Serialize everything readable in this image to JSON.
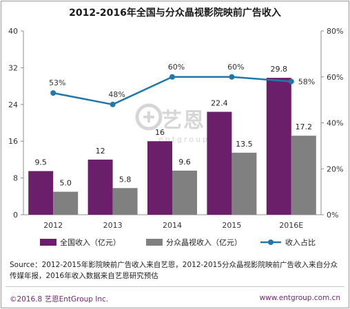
{
  "title": "2012-2016年全国与分众晶视影院映前广告收入",
  "watermark": {
    "text": "艺恩",
    "sub": "entgroup"
  },
  "colors": {
    "bar1": "#6b1f6b",
    "bar2": "#808080",
    "line": "#1f78a8",
    "footer": "#6e2870"
  },
  "chart_data": {
    "type": "bar",
    "categories": [
      "2012",
      "2013",
      "2014",
      "2015",
      "2016E"
    ],
    "series": [
      {
        "name": "全国收入（亿元）",
        "type": "bar",
        "axis": "left",
        "values": [
          9.5,
          12,
          16,
          22.4,
          29.8
        ],
        "labels": [
          "9.5",
          "12",
          "16",
          "22.4",
          "29.8"
        ]
      },
      {
        "name": "分众晶视收入（亿元）",
        "type": "bar",
        "axis": "left",
        "values": [
          5.0,
          5.8,
          9.6,
          13.5,
          17.2
        ],
        "labels": [
          "5.0",
          "5.8",
          "9.6",
          "13.5",
          "17.2"
        ]
      },
      {
        "name": "收入占比",
        "type": "line",
        "axis": "right",
        "values": [
          53,
          48,
          60,
          60,
          58
        ],
        "labels": [
          "53%",
          "48%",
          "60%",
          "60%",
          "58%"
        ]
      }
    ],
    "y_left": {
      "ylim": [
        0,
        40
      ],
      "ticks": [
        "0",
        "8",
        "16",
        "24",
        "32",
        "40"
      ]
    },
    "y_right": {
      "ylim": [
        0,
        80
      ],
      "ticks": [
        "0%",
        "20%",
        "40%",
        "60%",
        "80%"
      ]
    },
    "legend_position": "bottom",
    "grid": false
  },
  "source": "Source：2012-2015年影院映前广告收入来自艺恩，2012-2015分众晶视影院映前广告收入来自分众传媒年报，2016年收入数据来自艺恩研究预估",
  "copyright": "©2016.8  艺恩EntGroup Inc.",
  "website": "www.entgroup.com.cn"
}
